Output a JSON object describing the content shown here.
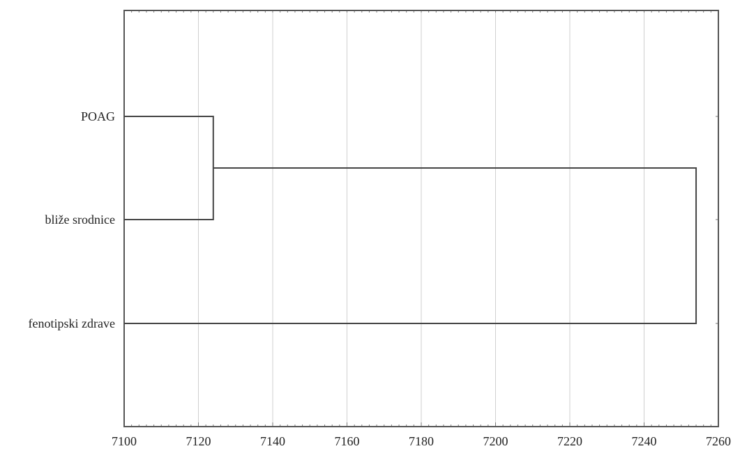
{
  "chart_data": {
    "type": "dendrogram",
    "title": "",
    "xlabel": "",
    "ylabel": "",
    "xlim": [
      7100,
      7260
    ],
    "x_ticks": [
      7100,
      7120,
      7140,
      7160,
      7180,
      7200,
      7220,
      7240,
      7260
    ],
    "grid": true,
    "leaves": [
      "POAG",
      "bliže srodnice",
      "fenotipski zdrave"
    ],
    "merges": [
      {
        "left": "POAG",
        "right": "bliže srodnice",
        "height": 7124
      },
      {
        "left": "POAG + bliže srodnice",
        "right": "fenotipski zdrave",
        "height": 7254
      }
    ]
  }
}
